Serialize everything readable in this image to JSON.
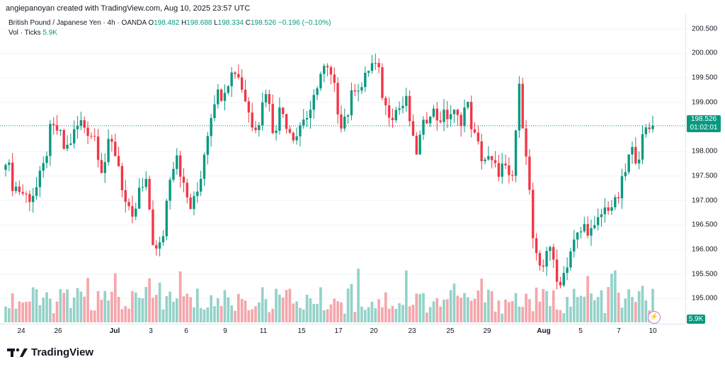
{
  "caption": "angiepanoyan created with TradingView.com, Aug 10, 2025 23:57 UTC",
  "legend": {
    "symbol": "British Pound / Japanese Yen · 4h · OANDA",
    "o_label": "O",
    "o_value": "198.482",
    "h_label": "H",
    "h_value": "198.688",
    "l_label": "L",
    "l_value": "198.334",
    "c_label": "C",
    "c_value": "198.526",
    "change": "−0.196 (−0.10%)",
    "vol_label": "Vol · Ticks",
    "vol_value": "5.9K"
  },
  "price_axis": {
    "ticks": [
      "200.500",
      "200.000",
      "199.500",
      "199.000",
      "198.500",
      "198.000",
      "197.500",
      "197.000",
      "196.500",
      "196.000",
      "195.500",
      "195.000"
    ],
    "last_price": "198.526",
    "countdown": "01:02:01",
    "volume_badge": "5.9K"
  },
  "time_axis": {
    "ticks": [
      {
        "label": "24",
        "bold": false
      },
      {
        "label": "26",
        "bold": false
      },
      {
        "label": "Jul",
        "bold": true
      },
      {
        "label": "3",
        "bold": false
      },
      {
        "label": "6",
        "bold": false
      },
      {
        "label": "9",
        "bold": false
      },
      {
        "label": "11",
        "bold": false
      },
      {
        "label": "15",
        "bold": false
      },
      {
        "label": "17",
        "bold": false
      },
      {
        "label": "20",
        "bold": false
      },
      {
        "label": "23",
        "bold": false
      },
      {
        "label": "25",
        "bold": false
      },
      {
        "label": "29",
        "bold": false
      },
      {
        "label": "Aug",
        "bold": true
      },
      {
        "label": "5",
        "bold": false
      },
      {
        "label": "7",
        "bold": false
      },
      {
        "label": "10",
        "bold": false
      }
    ]
  },
  "brand": {
    "name": "TradingView"
  },
  "colors": {
    "up": "#089981",
    "down": "#f23645",
    "up_vol": "#94d2c9",
    "down_vol": "#f5a6ab",
    "last_line": "#089981"
  },
  "chart_data": {
    "type": "candlestick",
    "title": "British Pound / Japanese Yen · 4h · OANDA",
    "ylim": [
      194.6,
      200.8
    ],
    "last_price": 198.526,
    "ohlc_approx_close_path": [
      197.9,
      197.3,
      197.2,
      197.05,
      197.2,
      197.6,
      198.4,
      198.45,
      198.0,
      198.3,
      198.6,
      198.45,
      198.3,
      197.6,
      198.2,
      197.9,
      197.0,
      196.5,
      197.2,
      197.3,
      195.9,
      196.1,
      197.5,
      198.0,
      197.2,
      196.8,
      197.3,
      198.3,
      199.1,
      199.2,
      199.5,
      199.7,
      199.2,
      198.6,
      198.6,
      199.3,
      198.4,
      198.9,
      198.5,
      198.3,
      198.7,
      198.7,
      199.5,
      199.7,
      199.4,
      198.6,
      198.8,
      199.4,
      199.3,
      199.8,
      199.7,
      198.9,
      198.8,
      198.9,
      199.0,
      197.9,
      198.4,
      198.9,
      198.7,
      198.7,
      198.8,
      198.6,
      199.0,
      198.3,
      197.9,
      197.8,
      197.6,
      197.7,
      197.2,
      199.3,
      198.0,
      196.0,
      195.4,
      196.3,
      195.3,
      195.5,
      196.0,
      196.3,
      196.5,
      196.3,
      196.7,
      196.9,
      196.9,
      197.4,
      198.0,
      197.9,
      198.4,
      198.53
    ],
    "volume_scale_label": "5.9K"
  }
}
